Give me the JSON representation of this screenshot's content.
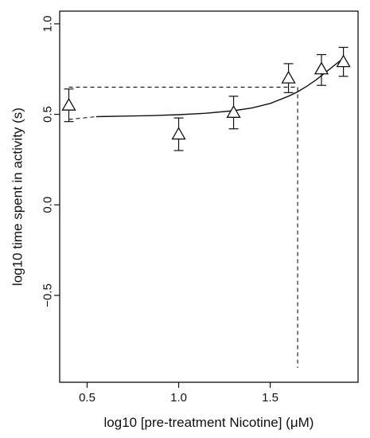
{
  "chart_data": {
    "type": "scatter",
    "xlabel": "log10 [pre-treatment Nicotine] (μM)",
    "ylabel": "log10 time spent in activity (s)",
    "xlim": [
      0.35,
      1.98
    ],
    "ylim": [
      -0.98,
      1.07
    ],
    "x_ticks": [
      0.5,
      1.0,
      1.5
    ],
    "x_tick_labels": [
      "0.5",
      "1.0",
      "1.5"
    ],
    "y_ticks": [
      -0.5,
      0.0,
      0.5,
      1.0
    ],
    "y_tick_labels": [
      "−0.5",
      "0.0",
      "0.5",
      "1.0"
    ],
    "grid": false,
    "marker": "open-triangle",
    "series": [
      {
        "x": [
          0.4,
          1.0,
          1.3,
          1.6,
          1.78,
          1.9
        ],
        "y": [
          0.55,
          0.39,
          0.51,
          0.7,
          0.75,
          0.79
        ],
        "err_low": [
          0.46,
          0.3,
          0.42,
          0.62,
          0.66,
          0.71
        ],
        "err_high": [
          0.64,
          0.48,
          0.6,
          0.78,
          0.83,
          0.87
        ]
      }
    ],
    "fit_curve": {
      "style": "solid",
      "x": [
        0.55,
        0.7,
        0.85,
        1.0,
        1.15,
        1.3,
        1.4,
        1.5,
        1.6,
        1.65,
        1.7,
        1.75,
        1.8,
        1.85,
        1.9
      ],
      "y": [
        0.487,
        0.49,
        0.493,
        0.498,
        0.506,
        0.52,
        0.535,
        0.56,
        0.6,
        0.625,
        0.655,
        0.69,
        0.73,
        0.77,
        0.81
      ]
    },
    "extrapolation": {
      "style": "dashed",
      "x": [
        0.4,
        0.55
      ],
      "y": [
        0.472,
        0.487
      ]
    },
    "reference_lines": {
      "style": "dashed",
      "x": 1.65,
      "y": 0.65
    }
  }
}
